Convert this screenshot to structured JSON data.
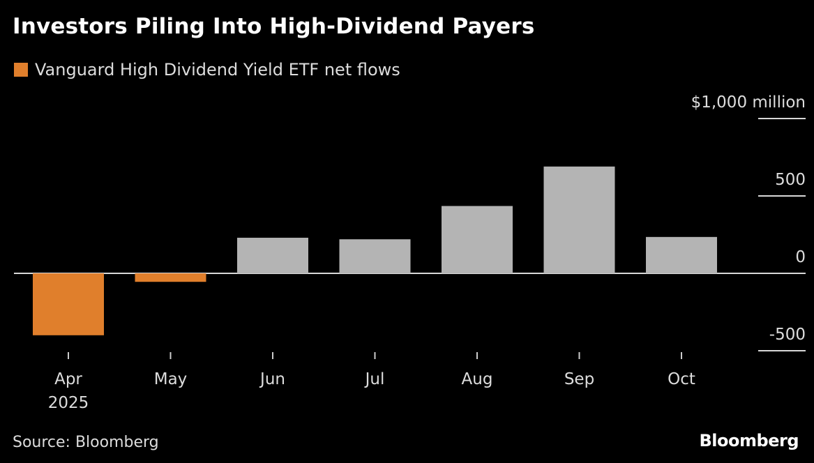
{
  "title": "Investors Piling Into High-Dividend Payers",
  "source": "Source: Bloomberg",
  "logo": "Bloomberg",
  "colors": {
    "negative": "#e07f2c",
    "positive": "#b4b4b4",
    "background": "#000000",
    "axis": "#d8d8d8"
  },
  "chart_data": {
    "type": "bar",
    "legend": [
      {
        "name": "Vanguard High Dividend Yield ETF net flows",
        "color": "#e07f2c"
      }
    ],
    "categories": [
      "Apr",
      "May",
      "Jun",
      "Jul",
      "Aug",
      "Sep",
      "Oct"
    ],
    "category_sublabels": [
      "2025",
      "",
      "",
      "",
      "",
      "",
      ""
    ],
    "series": [
      {
        "name": "Vanguard High Dividend Yield ETF net flows",
        "values": [
          -400,
          -55,
          230,
          220,
          435,
          690,
          235
        ]
      }
    ],
    "ylim": [
      -500,
      1000
    ],
    "yticks": [
      -500,
      0,
      500,
      1000
    ],
    "ytick_labels": [
      "-500",
      "0",
      "500",
      "$1,000 million"
    ],
    "yaxis_position": "right",
    "grid": false
  }
}
